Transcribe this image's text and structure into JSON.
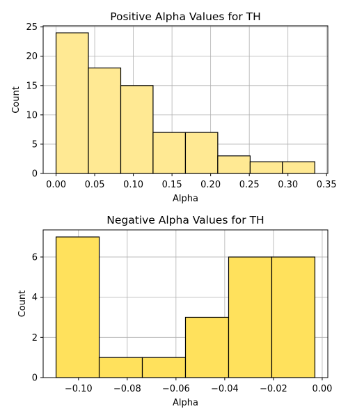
{
  "chart_data": [
    {
      "type": "bar",
      "title": "Positive Alpha Values for TH",
      "xlabel": "Alpha",
      "ylabel": "Count",
      "bin_edges": [
        0.0,
        0.0418,
        0.0837,
        0.1255,
        0.1674,
        0.2092,
        0.2511,
        0.2929,
        0.3348
      ],
      "values": [
        24,
        18,
        15,
        7,
        7,
        3,
        2,
        2
      ],
      "xlim": [
        -0.0167,
        0.3516
      ],
      "ylim": [
        0,
        25.2
      ],
      "xticks": [
        0.0,
        0.05,
        0.1,
        0.15,
        0.2,
        0.25,
        0.3,
        0.35
      ],
      "xtick_labels": [
        "0.00",
        "0.05",
        "0.10",
        "0.15",
        "0.20",
        "0.25",
        "0.30",
        "0.35"
      ],
      "yticks": [
        0,
        5,
        10,
        15,
        20,
        25
      ],
      "ytick_labels": [
        "0",
        "5",
        "10",
        "15",
        "20",
        "25"
      ],
      "grid": true,
      "bar_color": "#ffe993",
      "edge_color": "#000000"
    },
    {
      "type": "bar",
      "title": "Negative Alpha Values for TH",
      "xlabel": "Alpha",
      "ylabel": "Count",
      "bin_edges": [
        -0.1092,
        -0.0915,
        -0.0738,
        -0.0561,
        -0.0384,
        -0.0207,
        -0.003
      ],
      "values": [
        7,
        1,
        1,
        3,
        6,
        6
      ],
      "xlim": [
        -0.1145,
        0.0023
      ],
      "ylim": [
        0,
        7.35
      ],
      "xticks": [
        -0.1,
        -0.08,
        -0.06,
        -0.04,
        -0.02,
        0.0
      ],
      "xtick_labels": [
        "−0.10",
        "−0.08",
        "−0.06",
        "−0.04",
        "−0.02",
        "0.00"
      ],
      "yticks": [
        0,
        2,
        4,
        6
      ],
      "ytick_labels": [
        "0",
        "2",
        "4",
        "6"
      ],
      "grid": true,
      "bar_color": "#ffe15c",
      "edge_color": "#000000"
    }
  ]
}
